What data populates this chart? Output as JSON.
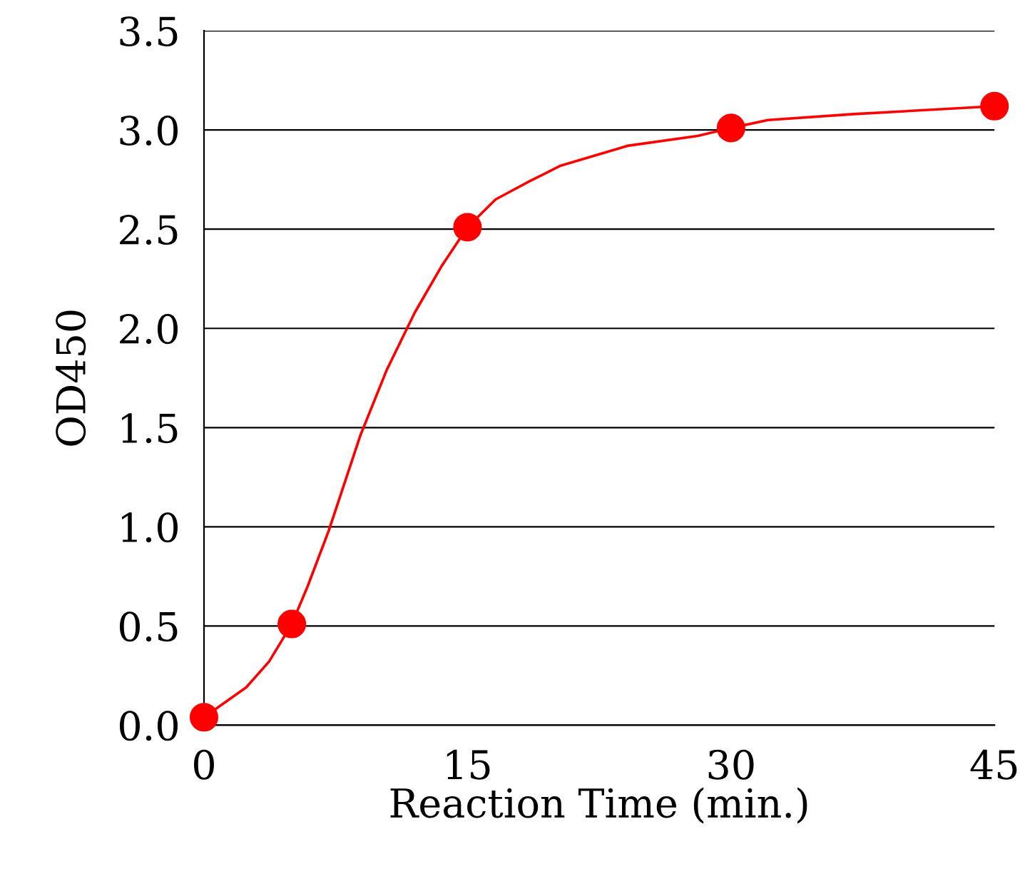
{
  "chart_data": {
    "type": "line",
    "xlabel": "Reaction Time (min.)",
    "ylabel": "OD450",
    "series": [
      {
        "color": "#ff0000",
        "marker": "none",
        "x": [
          0,
          2.4,
          3.7,
          5,
          5.9,
          7.1,
          8.9,
          10.4,
          12,
          13.5,
          15,
          16.6,
          18.5,
          20.3,
          24.1,
          28.1,
          30,
          32.1,
          37,
          45
        ],
        "values": [
          0.04,
          0.19,
          0.32,
          0.51,
          0.7,
          0.98,
          1.46,
          1.79,
          2.08,
          2.31,
          2.51,
          2.65,
          2.74,
          2.82,
          2.92,
          2.97,
          3.01,
          3.05,
          3.08,
          3.12
        ]
      },
      {
        "type": "scatter",
        "color": "#ff0000",
        "marker": "circle",
        "x": [
          0,
          5,
          15,
          30,
          45
        ],
        "values": [
          0.04,
          0.51,
          2.51,
          3.01,
          3.12
        ]
      }
    ],
    "xlim": [
      0,
      45
    ],
    "xticks": [
      0,
      15,
      30,
      45
    ],
    "ylim": [
      0,
      3.5
    ],
    "yticks": [
      {
        "value": 0,
        "label": "0.0"
      },
      {
        "value": 0.5,
        "label": "0.5"
      },
      {
        "value": 1,
        "label": "1.0"
      },
      {
        "value": 1.5,
        "label": "1.5"
      },
      {
        "value": 2,
        "label": "2.0"
      },
      {
        "value": 2.5,
        "label": "2.5"
      },
      {
        "value": 3,
        "label": "3.0"
      },
      {
        "value": 3.5,
        "label": "3.5"
      }
    ],
    "grid": "y",
    "legend": false
  }
}
